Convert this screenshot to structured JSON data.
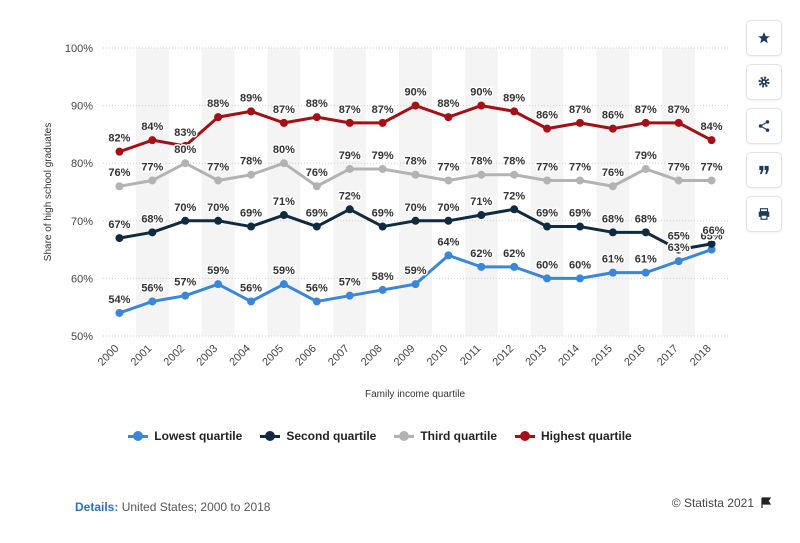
{
  "chart_data": {
    "type": "line",
    "title": "",
    "xlabel": "Family income quartile",
    "ylabel": "Share of high school graduates",
    "ylim": [
      50,
      100
    ],
    "yticks": [
      "50%",
      "60%",
      "70%",
      "80%",
      "90%",
      "100%"
    ],
    "grid": true,
    "legend_position": "bottom",
    "categories": [
      "2000",
      "2001",
      "2002",
      "2003",
      "2004",
      "2005",
      "2006",
      "2007",
      "2008",
      "2009",
      "2010",
      "2011",
      "2012",
      "2013",
      "2014",
      "2015",
      "2016",
      "2017",
      "2018"
    ],
    "series": [
      {
        "name": "Lowest quartile",
        "color": "#3a86d9",
        "values": [
          54,
          56,
          57,
          59,
          56,
          59,
          56,
          57,
          58,
          59,
          64,
          62,
          62,
          60,
          60,
          61,
          61,
          63,
          65
        ]
      },
      {
        "name": "Second quartile",
        "color": "#102a40",
        "values": [
          67,
          68,
          70,
          70,
          69,
          71,
          69,
          72,
          69,
          70,
          70,
          71,
          72,
          69,
          69,
          68,
          68,
          65,
          66
        ]
      },
      {
        "name": "Third quartile",
        "color": "#b3b3b3",
        "values": [
          76,
          77,
          80,
          77,
          78,
          80,
          76,
          79,
          79,
          78,
          77,
          78,
          78,
          77,
          77,
          76,
          79,
          77,
          77
        ]
      },
      {
        "name": "Highest quartile",
        "color": "#a50f15",
        "values": [
          82,
          84,
          83,
          88,
          89,
          87,
          88,
          87,
          87,
          90,
          88,
          90,
          89,
          86,
          87,
          86,
          87,
          87,
          84
        ]
      }
    ],
    "data_labels": [
      [
        "54%",
        "56%",
        "57%",
        "59%",
        "56%",
        "59%",
        "56%",
        "57%",
        "58%",
        "59%",
        "64%",
        "62%",
        "62%",
        "60%",
        "60%",
        "61%",
        "61%",
        "63%",
        "65%"
      ],
      [
        "67%",
        "68%",
        "70%",
        "70%",
        "69%",
        "71%",
        "69%",
        "72%",
        "69%",
        "70%",
        "70%",
        "71%",
        "72%",
        "69%",
        "69%",
        "68%",
        "68%",
        "65%",
        ""
      ],
      [
        "76%",
        "77%",
        "80%",
        "77%",
        "78%",
        "80%",
        "76%",
        "79%",
        "79%",
        "78%",
        "77%",
        "78%",
        "78%",
        "77%",
        "77%",
        "76%",
        "79%",
        "77%",
        "77%"
      ],
      [
        "82%",
        "84%",
        "83%",
        "88%",
        "89%",
        "87%",
        "88%",
        "87%",
        "87%",
        "90%",
        "88%",
        "90%",
        "89%",
        "86%",
        "87%",
        "86%",
        "87%",
        "87%",
        "84%"
      ]
    ]
  },
  "footer": {
    "details_label": "Details:",
    "details_text": " United States; 2000 to 2018",
    "credit": "© Statista 2021"
  },
  "toolbar": {
    "icons": [
      "star-icon",
      "gear-icon",
      "share-icon",
      "quote-icon",
      "print-icon"
    ]
  }
}
